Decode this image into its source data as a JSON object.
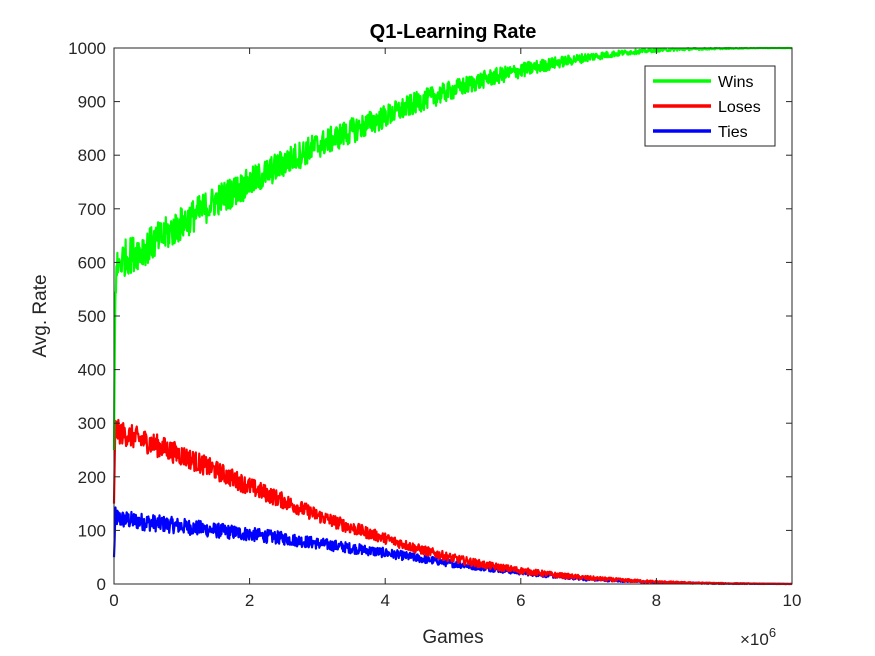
{
  "chart_data": {
    "type": "line",
    "title": "Q1-Learning Rate",
    "xlabel": "Games",
    "ylabel": "Avg. Rate",
    "xlim": [
      0,
      10
    ],
    "ylim": [
      0,
      1000
    ],
    "x_multiplier": {
      "base": "×10",
      "exponent": "6"
    },
    "x_ticks": [
      0,
      2,
      4,
      6,
      8,
      10
    ],
    "x_tick_labels": [
      "0",
      "2",
      "4",
      "6",
      "8",
      "10"
    ],
    "y_ticks": [
      0,
      100,
      200,
      300,
      400,
      500,
      600,
      700,
      800,
      900,
      1000
    ],
    "y_tick_labels": [
      "0",
      "100",
      "200",
      "300",
      "400",
      "500",
      "600",
      "700",
      "800",
      "900",
      "1000"
    ],
    "grid": false,
    "legend_position": "top-right",
    "series": [
      {
        "name": "Wins",
        "color": "#00ff00",
        "x": [
          0,
          0.02,
          0.05,
          0.1,
          0.5,
          1,
          1.5,
          2,
          2.5,
          3,
          3.5,
          4,
          4.5,
          5,
          5.5,
          6,
          6.5,
          7,
          7.5,
          8,
          8.5,
          9,
          9.5,
          10
        ],
        "y": [
          250,
          560,
          590,
          605,
          630,
          672,
          715,
          748,
          785,
          818,
          845,
          872,
          900,
          922,
          943,
          958,
          972,
          983,
          991,
          996,
          998,
          999,
          1000,
          1000
        ],
        "noise": [
          0,
          35,
          35,
          35,
          33,
          32,
          30,
          28,
          27,
          25,
          24,
          22,
          20,
          18,
          16,
          14,
          11,
          8,
          5,
          3,
          2,
          1,
          0.5,
          0.5
        ]
      },
      {
        "name": "Loses",
        "color": "#ff0000",
        "x": [
          0,
          0.02,
          0.05,
          0.1,
          0.5,
          1,
          1.5,
          2,
          2.5,
          3,
          3.5,
          4,
          4.5,
          5,
          5.5,
          6,
          6.5,
          7,
          7.5,
          8,
          8.5,
          9,
          9.5,
          10
        ],
        "y": [
          150,
          290,
          285,
          282,
          265,
          240,
          212,
          182,
          155,
          128,
          105,
          85,
          65,
          48,
          35,
          25,
          17,
          11,
          7,
          4,
          2,
          1,
          0.5,
          0
        ],
        "noise": [
          0,
          22,
          22,
          22,
          22,
          20,
          18,
          17,
          15,
          13,
          12,
          10,
          9,
          8,
          7,
          6,
          5,
          4,
          3,
          2,
          1.5,
          1,
          0.5,
          0.3
        ]
      },
      {
        "name": "Ties",
        "color": "#0000ff",
        "x": [
          0,
          0.02,
          0.05,
          0.1,
          0.5,
          1,
          1.5,
          2,
          2.5,
          3,
          3.5,
          4,
          4.5,
          5,
          5.5,
          6,
          6.5,
          7,
          7.5,
          8,
          8.5,
          9,
          9.5,
          10
        ],
        "y": [
          50,
          125,
          123,
          121,
          115,
          108,
          100,
          93,
          85,
          76,
          67,
          58,
          48,
          38,
          30,
          22,
          15,
          9,
          6,
          3,
          2,
          1,
          0.5,
          0
        ],
        "noise": [
          0,
          18,
          18,
          17,
          16,
          15,
          14,
          13,
          12,
          11,
          10,
          9,
          8,
          7,
          6,
          5,
          4,
          3,
          2,
          1.5,
          1,
          0.5,
          0.3,
          0.2
        ]
      }
    ]
  }
}
